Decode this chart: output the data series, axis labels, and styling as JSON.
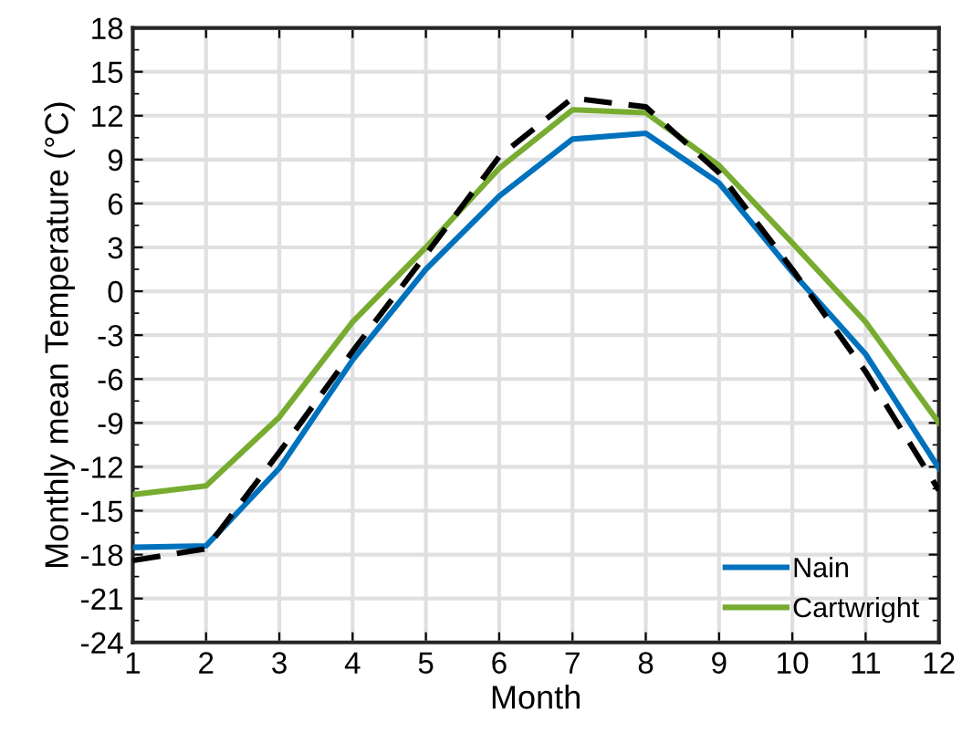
{
  "chart_data": {
    "type": "line",
    "xlabel": "Month",
    "ylabel": "Monthly mean Temperature (°C)",
    "x": [
      1,
      2,
      3,
      4,
      5,
      6,
      7,
      8,
      9,
      10,
      11,
      12
    ],
    "series": [
      {
        "name": "Nain",
        "color": "#0072bd",
        "values": [
          -17.5,
          -17.4,
          -12.1,
          -4.7,
          1.5,
          6.5,
          10.4,
          10.8,
          7.4,
          1.3,
          -4.3,
          -12.1
        ]
      },
      {
        "name": "Cartwright",
        "color": "#77ac30",
        "values": [
          -13.9,
          -13.3,
          -8.6,
          -2.1,
          3.0,
          8.4,
          12.4,
          12.2,
          8.6,
          3.3,
          -2.1,
          -9.0
        ]
      },
      {
        "color": "#000000",
        "line_style": "dashed",
        "values": [
          -18.4,
          -17.6,
          -11.0,
          -4.1,
          2.5,
          9.2,
          13.2,
          12.6,
          8.1,
          1.5,
          -5.5,
          -13.6
        ]
      }
    ],
    "xlim": [
      1,
      12
    ],
    "xticks": [
      1,
      2,
      3,
      4,
      5,
      6,
      7,
      8,
      9,
      10,
      11,
      12
    ],
    "ylim": [
      -24,
      18
    ],
    "yticks": [
      -24,
      -21,
      -18,
      -15,
      -12,
      -9,
      -6,
      -3,
      0,
      3,
      6,
      9,
      12,
      15,
      18
    ],
    "grid": true,
    "legend": "bottom right"
  }
}
